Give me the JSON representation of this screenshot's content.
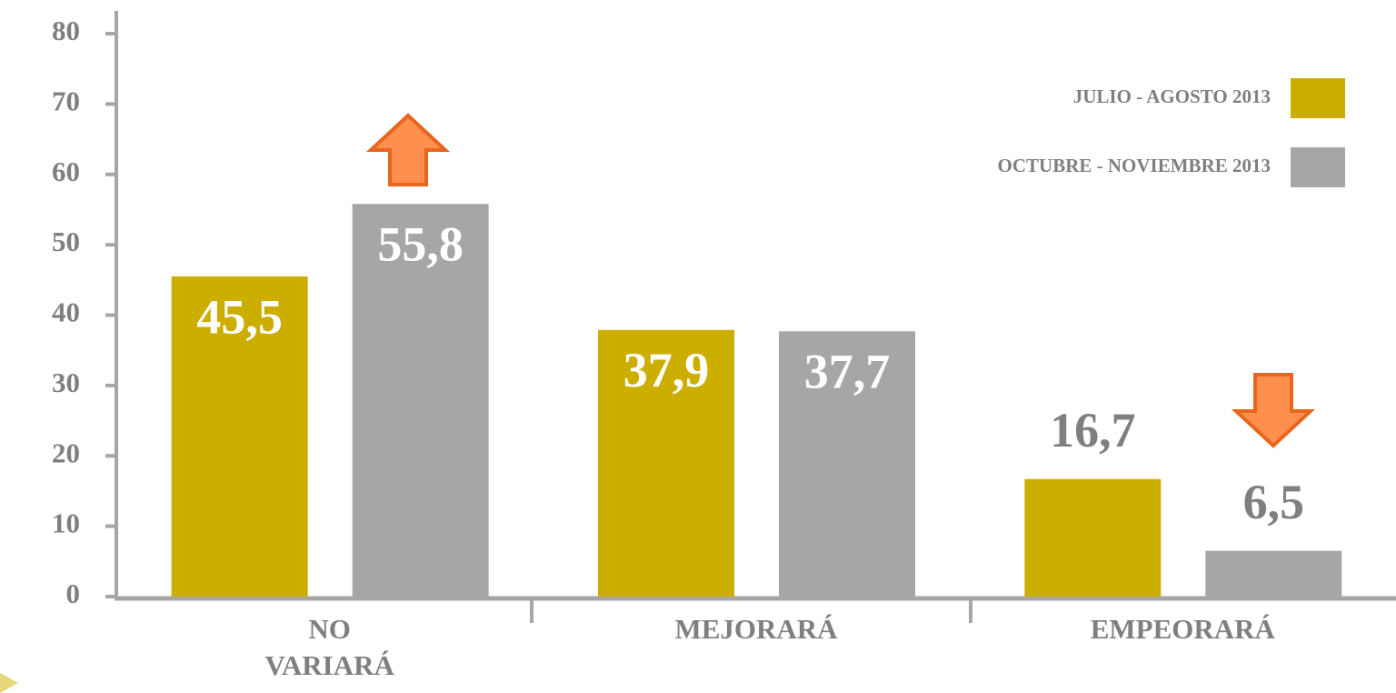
{
  "chart_data": {
    "type": "bar",
    "categories": [
      "NO VARIARÁ",
      "MEJORARÁ",
      "EMPEORARÁ"
    ],
    "series": [
      {
        "name": "JULIO - AGOSTO 2013",
        "color": "#ccae00",
        "values": [
          45.5,
          37.9,
          16.7
        ],
        "value_labels": [
          "45,5",
          "37,9",
          "16,7"
        ]
      },
      {
        "name": "OCTUBRE - NOVIEMBRE 2013",
        "color": "#a6a6a6",
        "values": [
          55.8,
          37.7,
          6.5
        ],
        "value_labels": [
          "55,8",
          "37,7",
          "6,5"
        ]
      }
    ],
    "ylim": [
      0,
      80
    ],
    "yticks": [
      0,
      10,
      20,
      30,
      40,
      50,
      60,
      70,
      80
    ],
    "grid": false,
    "legend": "top-right"
  }
}
